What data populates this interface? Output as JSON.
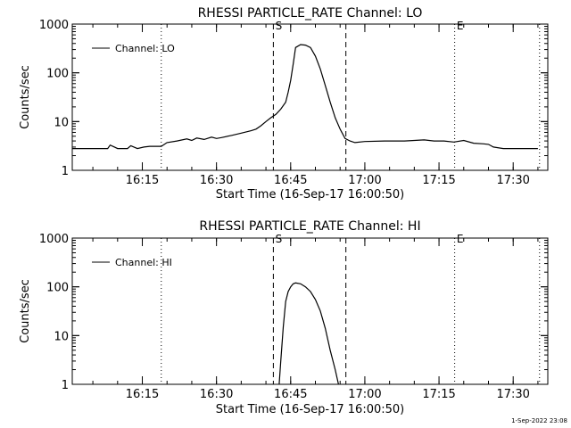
{
  "footer_stamp": "1-Sep-2022 23:08",
  "chart_data": [
    {
      "type": "line",
      "title": "RHESSI PARTICLE_RATE Channel: LO",
      "xlabel": "Start Time (16-Sep-17 16:00:50)",
      "ylabel": "Counts/sec",
      "yscale": "log",
      "ylim": [
        1,
        1000
      ],
      "y_ticks": [
        "1",
        "10",
        "100",
        "1000"
      ],
      "xlim": [
        "16:00:50",
        "17:37:00"
      ],
      "x_ticks": [
        "16:15",
        "16:30",
        "16:45",
        "17:00",
        "17:15",
        "17:30"
      ],
      "legend": {
        "label": "Channel: LO",
        "position": "top-left"
      },
      "markers": [
        {
          "label": "",
          "time": "16:18:50",
          "style": "dotted"
        },
        {
          "label": "S",
          "time": "16:41:30",
          "style": "dashed"
        },
        {
          "label": "",
          "time": "16:56:10",
          "style": "dashed"
        },
        {
          "label": "E",
          "time": "17:18:10",
          "style": "dotted"
        },
        {
          "label": "",
          "time": "17:35:20",
          "style": "dotted"
        }
      ],
      "series": [
        {
          "name": "Channel: LO",
          "x": [
            "16:00:50",
            "16:05:00",
            "16:08:00",
            "16:08:30",
            "16:10:00",
            "16:12:00",
            "16:12:40",
            "16:14:00",
            "16:15:20",
            "16:16:30",
            "16:18:50",
            "16:20:00",
            "16:22:00",
            "16:24:00",
            "16:25:00",
            "16:26:00",
            "16:27:30",
            "16:29:00",
            "16:30:00",
            "16:31:00",
            "16:33:00",
            "16:35:00",
            "16:37:00",
            "16:38:00",
            "16:39:00",
            "16:40:00",
            "16:41:00",
            "16:42:00",
            "16:43:00",
            "16:44:00",
            "16:44:30",
            "16:45:00",
            "16:45:30",
            "16:46:00",
            "16:47:00",
            "16:48:00",
            "16:49:00",
            "16:50:00",
            "16:51:00",
            "16:52:00",
            "16:53:00",
            "16:54:00",
            "16:55:00",
            "16:56:00",
            "16:57:00",
            "16:58:00",
            "17:00:00",
            "17:04:00",
            "17:08:00",
            "17:12:00",
            "17:14:00",
            "17:16:00",
            "17:18:00",
            "17:20:00",
            "17:22:00",
            "17:24:00",
            "17:25:00",
            "17:26:00",
            "17:28:00",
            "17:32:00",
            "17:34:30",
            "17:35:00"
          ],
          "y": [
            2.8,
            2.8,
            2.8,
            3.3,
            2.8,
            2.8,
            3.2,
            2.8,
            3.0,
            3.1,
            3.1,
            3.7,
            4.0,
            4.4,
            4.1,
            4.6,
            4.3,
            4.8,
            4.5,
            4.7,
            5.2,
            5.8,
            6.5,
            7.0,
            8.2,
            10,
            12,
            14,
            18,
            25,
            40,
            70,
            150,
            330,
            380,
            370,
            330,
            220,
            120,
            55,
            25,
            12,
            7,
            4.5,
            4.0,
            3.7,
            3.9,
            4.0,
            4.0,
            4.2,
            4.0,
            4.0,
            3.8,
            4.1,
            3.6,
            3.5,
            3.4,
            3.0,
            2.8,
            2.8,
            2.8,
            2.8
          ]
        }
      ]
    },
    {
      "type": "line",
      "title": "RHESSI PARTICLE_RATE Channel: HI",
      "xlabel": "Start Time (16-Sep-17 16:00:50)",
      "ylabel": "Counts/sec",
      "yscale": "log",
      "ylim": [
        1,
        1000
      ],
      "y_ticks": [
        "1",
        "10",
        "100",
        "1000"
      ],
      "xlim": [
        "16:00:50",
        "17:37:00"
      ],
      "x_ticks": [
        "16:15",
        "16:30",
        "16:45",
        "17:00",
        "17:15",
        "17:30"
      ],
      "legend": {
        "label": "Channel: HI",
        "position": "top-left"
      },
      "markers": [
        {
          "label": "",
          "time": "16:18:50",
          "style": "dotted"
        },
        {
          "label": "S",
          "time": "16:41:30",
          "style": "dashed"
        },
        {
          "label": "",
          "time": "16:56:10",
          "style": "dashed"
        },
        {
          "label": "E",
          "time": "17:18:10",
          "style": "dotted"
        },
        {
          "label": "",
          "time": "17:35:20",
          "style": "dotted"
        }
      ],
      "series": [
        {
          "name": "Channel: HI",
          "x": [
            "16:42:40",
            "16:43:00",
            "16:43:30",
            "16:44:00",
            "16:44:30",
            "16:45:00",
            "16:45:30",
            "16:46:00",
            "16:47:00",
            "16:48:00",
            "16:49:00",
            "16:50:00",
            "16:51:00",
            "16:52:00",
            "16:53:00",
            "16:54:00",
            "16:54:40"
          ],
          "y": [
            1,
            3,
            15,
            50,
            80,
            100,
            115,
            120,
            115,
            100,
            80,
            55,
            32,
            14,
            5,
            2,
            1
          ]
        }
      ]
    }
  ]
}
